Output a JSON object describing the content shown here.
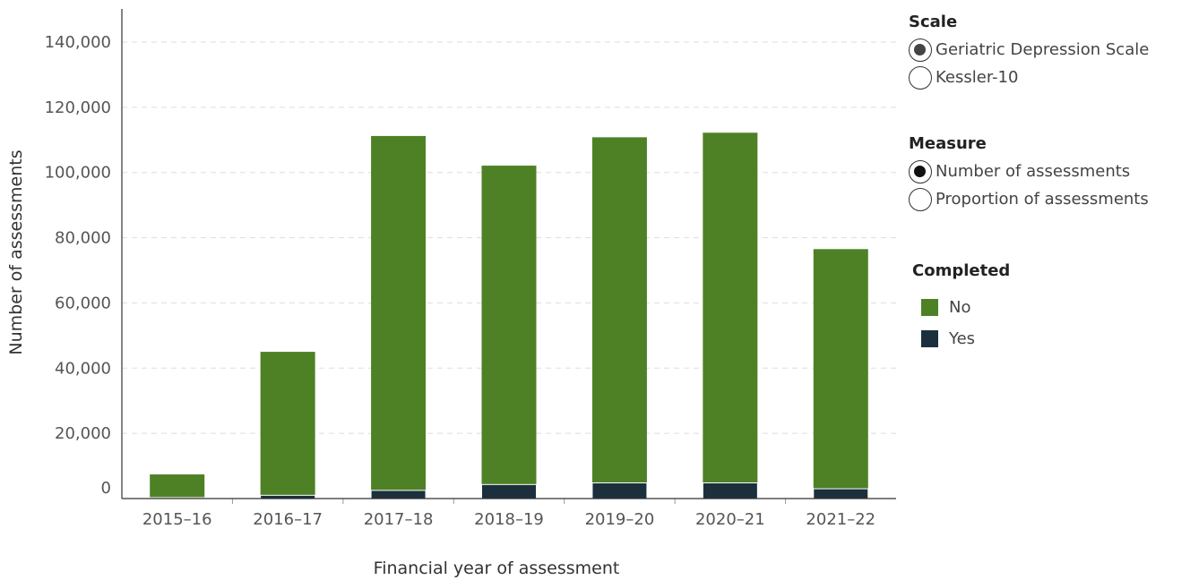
{
  "colors": {
    "no": "#4e8126",
    "yes": "#1c2f3c",
    "grid": "#dddddd",
    "axis": "#333333"
  },
  "scale_filter": {
    "title": "Scale",
    "options": [
      {
        "label": "Geriatric Depression Scale",
        "selected": true
      },
      {
        "label": "Kessler-10",
        "selected": false
      }
    ]
  },
  "measure_filter": {
    "title": "Measure",
    "options": [
      {
        "label": "Number of assessments",
        "selected": true
      },
      {
        "label": "Proportion of assessments",
        "selected": false
      }
    ]
  },
  "legend": {
    "title": "Completed",
    "items": [
      {
        "label": "No",
        "color": "#4e8126"
      },
      {
        "label": "Yes",
        "color": "#1c2f3c"
      }
    ]
  },
  "chart_data": {
    "type": "bar",
    "stacked": true,
    "categories": [
      "2015–16",
      "2016–17",
      "2017–18",
      "2018–19",
      "2019–20",
      "2020–21",
      "2021–22"
    ],
    "series": [
      {
        "name": "Yes",
        "values": [
          300,
          1000,
          2500,
          4300,
          4800,
          4800,
          3000
        ]
      },
      {
        "name": "No",
        "values": [
          7100,
          44000,
          108700,
          97800,
          106000,
          107400,
          73500
        ]
      }
    ],
    "xlabel": "Financial year of assessment",
    "ylabel": "Number of assessments",
    "ylim": [
      0,
      150000
    ],
    "yticks": [
      0,
      20000,
      40000,
      60000,
      80000,
      100000,
      120000,
      140000
    ],
    "ytick_labels": [
      "0",
      "20,000",
      "40,000",
      "60,000",
      "80,000",
      "100,000",
      "120,000",
      "140,000"
    ],
    "grid": true,
    "legend_position": "right"
  }
}
